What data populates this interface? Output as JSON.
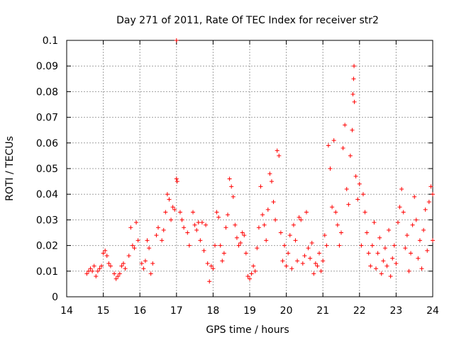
{
  "chart_data": {
    "type": "scatter",
    "title": "Day 271 of 2011, Rate Of TEC Index for receiver str2",
    "xlabel": "GPS time / hours",
    "ylabel": "ROTI / TECUs",
    "xlim": [
      14,
      24
    ],
    "ylim": [
      0,
      0.1
    ],
    "xticks": [
      14,
      15,
      16,
      17,
      18,
      19,
      20,
      21,
      22,
      23,
      24
    ],
    "xtick_labels": [
      "14",
      "15",
      "16",
      "17",
      "18",
      "19",
      "20",
      "21",
      "22",
      "23",
      "24"
    ],
    "yticks": [
      0,
      0.01,
      0.02,
      0.03,
      0.04,
      0.05,
      0.06,
      0.07,
      0.08,
      0.09,
      0.1
    ],
    "ytick_labels": [
      "0",
      "0.01",
      "0.02",
      "0.03",
      "0.04",
      "0.05",
      "0.06",
      "0.07",
      "0.08",
      "0.09",
      "0.1"
    ],
    "grid": true,
    "marker": "+",
    "marker_color": "#ff0000",
    "points": [
      [
        14.55,
        0.009
      ],
      [
        14.6,
        0.01
      ],
      [
        14.65,
        0.011
      ],
      [
        14.7,
        0.01
      ],
      [
        14.75,
        0.012
      ],
      [
        14.8,
        0.008
      ],
      [
        14.85,
        0.01
      ],
      [
        14.9,
        0.011
      ],
      [
        14.95,
        0.012
      ],
      [
        15.0,
        0.017
      ],
      [
        15.05,
        0.018
      ],
      [
        15.1,
        0.016
      ],
      [
        15.15,
        0.013
      ],
      [
        15.2,
        0.012
      ],
      [
        15.3,
        0.009
      ],
      [
        15.35,
        0.007
      ],
      [
        15.4,
        0.008
      ],
      [
        15.45,
        0.009
      ],
      [
        15.5,
        0.012
      ],
      [
        15.55,
        0.013
      ],
      [
        15.6,
        0.011
      ],
      [
        15.7,
        0.016
      ],
      [
        15.75,
        0.027
      ],
      [
        15.8,
        0.02
      ],
      [
        15.85,
        0.019
      ],
      [
        15.9,
        0.029
      ],
      [
        15.95,
        0.022
      ],
      [
        16.05,
        0.013
      ],
      [
        16.1,
        0.011
      ],
      [
        16.15,
        0.014
      ],
      [
        16.2,
        0.022
      ],
      [
        16.25,
        0.019
      ],
      [
        16.3,
        0.009
      ],
      [
        16.35,
        0.013
      ],
      [
        16.45,
        0.024
      ],
      [
        16.5,
        0.027
      ],
      [
        16.6,
        0.022
      ],
      [
        16.65,
        0.026
      ],
      [
        16.7,
        0.033
      ],
      [
        16.75,
        0.04
      ],
      [
        16.8,
        0.038
      ],
      [
        16.85,
        0.03
      ],
      [
        16.9,
        0.035
      ],
      [
        16.95,
        0.034
      ],
      [
        17.0,
        0.046
      ],
      [
        17.02,
        0.045
      ],
      [
        17.0,
        0.1
      ],
      [
        17.1,
        0.033
      ],
      [
        17.15,
        0.03
      ],
      [
        17.2,
        0.027
      ],
      [
        17.3,
        0.025
      ],
      [
        17.35,
        0.02
      ],
      [
        17.45,
        0.033
      ],
      [
        17.5,
        0.028
      ],
      [
        17.55,
        0.026
      ],
      [
        17.6,
        0.029
      ],
      [
        17.65,
        0.022
      ],
      [
        17.7,
        0.029
      ],
      [
        17.75,
        0.018
      ],
      [
        17.8,
        0.028
      ],
      [
        17.85,
        0.013
      ],
      [
        17.9,
        0.006
      ],
      [
        17.95,
        0.012
      ],
      [
        18.0,
        0.011
      ],
      [
        18.05,
        0.02
      ],
      [
        18.1,
        0.033
      ],
      [
        18.15,
        0.031
      ],
      [
        18.2,
        0.02
      ],
      [
        18.25,
        0.014
      ],
      [
        18.3,
        0.017
      ],
      [
        18.35,
        0.027
      ],
      [
        18.4,
        0.032
      ],
      [
        18.45,
        0.046
      ],
      [
        18.5,
        0.043
      ],
      [
        18.55,
        0.039
      ],
      [
        18.6,
        0.028
      ],
      [
        18.65,
        0.023
      ],
      [
        18.7,
        0.02
      ],
      [
        18.75,
        0.021
      ],
      [
        18.8,
        0.025
      ],
      [
        18.85,
        0.024
      ],
      [
        18.9,
        0.017
      ],
      [
        18.95,
        0.008
      ],
      [
        19.0,
        0.007
      ],
      [
        19.05,
        0.009
      ],
      [
        19.1,
        0.012
      ],
      [
        19.15,
        0.01
      ],
      [
        19.2,
        0.019
      ],
      [
        19.25,
        0.027
      ],
      [
        19.3,
        0.043
      ],
      [
        19.35,
        0.032
      ],
      [
        19.4,
        0.028
      ],
      [
        19.45,
        0.022
      ],
      [
        19.5,
        0.034
      ],
      [
        19.55,
        0.048
      ],
      [
        19.6,
        0.045
      ],
      [
        19.65,
        0.037
      ],
      [
        19.7,
        0.03
      ],
      [
        19.75,
        0.057
      ],
      [
        19.8,
        0.055
      ],
      [
        19.85,
        0.025
      ],
      [
        19.9,
        0.014
      ],
      [
        19.95,
        0.02
      ],
      [
        20.0,
        0.012
      ],
      [
        20.05,
        0.017
      ],
      [
        20.1,
        0.024
      ],
      [
        20.15,
        0.011
      ],
      [
        20.2,
        0.028
      ],
      [
        20.25,
        0.022
      ],
      [
        20.3,
        0.014
      ],
      [
        20.35,
        0.031
      ],
      [
        20.4,
        0.03
      ],
      [
        20.45,
        0.013
      ],
      [
        20.5,
        0.016
      ],
      [
        20.55,
        0.033
      ],
      [
        20.6,
        0.019
      ],
      [
        20.65,
        0.015
      ],
      [
        20.7,
        0.021
      ],
      [
        20.75,
        0.009
      ],
      [
        20.8,
        0.013
      ],
      [
        20.85,
        0.012
      ],
      [
        20.9,
        0.017
      ],
      [
        20.95,
        0.01
      ],
      [
        21.0,
        0.014
      ],
      [
        21.05,
        0.024
      ],
      [
        21.1,
        0.02
      ],
      [
        21.15,
        0.059
      ],
      [
        21.2,
        0.05
      ],
      [
        21.25,
        0.035
      ],
      [
        21.3,
        0.061
      ],
      [
        21.35,
        0.033
      ],
      [
        21.4,
        0.028
      ],
      [
        21.45,
        0.02
      ],
      [
        21.5,
        0.025
      ],
      [
        21.55,
        0.058
      ],
      [
        21.6,
        0.067
      ],
      [
        21.65,
        0.042
      ],
      [
        21.7,
        0.036
      ],
      [
        21.75,
        0.055
      ],
      [
        21.8,
        0.065
      ],
      [
        21.82,
        0.079
      ],
      [
        21.84,
        0.085
      ],
      [
        21.85,
        0.09
      ],
      [
        21.86,
        0.076
      ],
      [
        21.9,
        0.047
      ],
      [
        21.95,
        0.038
      ],
      [
        22.0,
        0.044
      ],
      [
        22.05,
        0.02
      ],
      [
        22.1,
        0.04
      ],
      [
        22.15,
        0.033
      ],
      [
        22.2,
        0.025
      ],
      [
        22.25,
        0.017
      ],
      [
        22.3,
        0.012
      ],
      [
        22.35,
        0.02
      ],
      [
        22.4,
        0.029
      ],
      [
        22.45,
        0.011
      ],
      [
        22.5,
        0.017
      ],
      [
        22.55,
        0.023
      ],
      [
        22.6,
        0.009
      ],
      [
        22.65,
        0.014
      ],
      [
        22.7,
        0.019
      ],
      [
        22.75,
        0.012
      ],
      [
        22.8,
        0.026
      ],
      [
        22.85,
        0.008
      ],
      [
        22.9,
        0.015
      ],
      [
        22.95,
        0.02
      ],
      [
        23.0,
        0.013
      ],
      [
        23.05,
        0.029
      ],
      [
        23.1,
        0.035
      ],
      [
        23.15,
        0.042
      ],
      [
        23.2,
        0.033
      ],
      [
        23.25,
        0.019
      ],
      [
        23.3,
        0.024
      ],
      [
        23.35,
        0.01
      ],
      [
        23.4,
        0.017
      ],
      [
        23.45,
        0.028
      ],
      [
        23.5,
        0.039
      ],
      [
        23.55,
        0.03
      ],
      [
        23.6,
        0.015
      ],
      [
        23.65,
        0.022
      ],
      [
        23.7,
        0.011
      ],
      [
        23.75,
        0.026
      ],
      [
        23.8,
        0.034
      ],
      [
        23.85,
        0.018
      ],
      [
        23.9,
        0.037
      ],
      [
        23.95,
        0.043
      ],
      [
        24.0,
        0.022
      ],
      [
        24.0,
        0.04
      ]
    ]
  }
}
